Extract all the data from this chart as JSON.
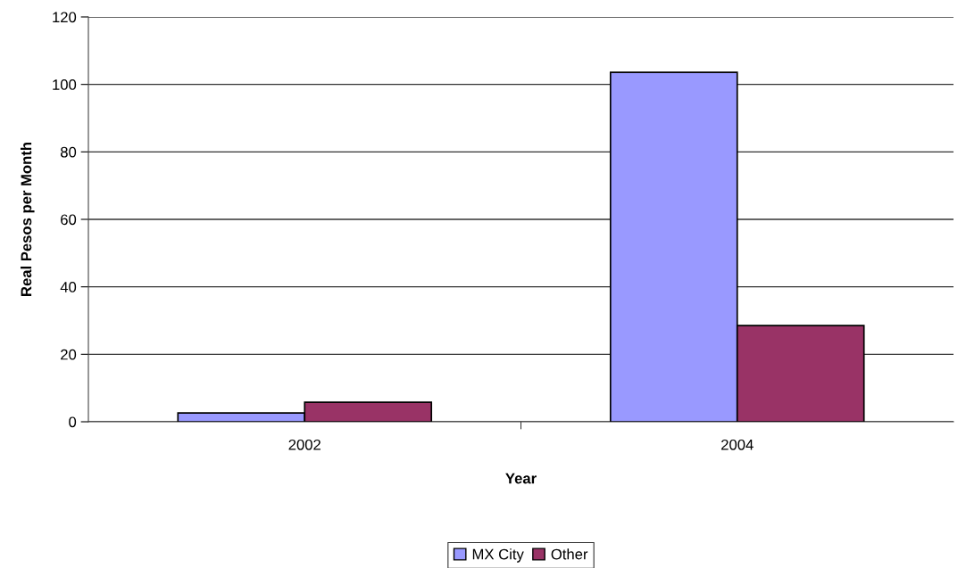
{
  "chart_data": {
    "type": "bar",
    "xlabel": "Year",
    "ylabel": "Real Pesos per Month",
    "categories": [
      "2002",
      "2004"
    ],
    "series": [
      {
        "name": "MX City",
        "color": "#9999ff",
        "values": [
          2.6,
          103.6
        ]
      },
      {
        "name": "Other",
        "color": "#993366",
        "values": [
          5.8,
          28.5
        ]
      }
    ],
    "ylim": [
      0,
      120
    ],
    "yticks": [
      0,
      20,
      40,
      60,
      80,
      100,
      120
    ],
    "grid": "y",
    "legend": "bottom"
  }
}
